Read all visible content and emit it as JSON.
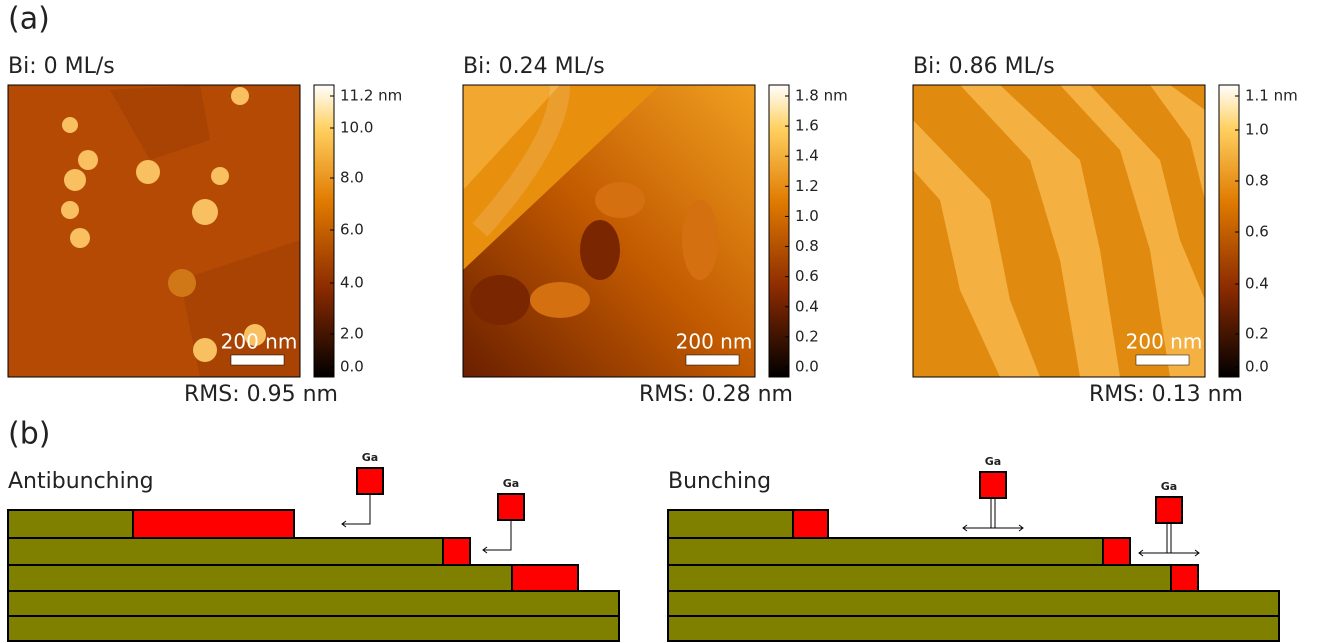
{
  "panel_a": {
    "label": "(a)",
    "images": [
      {
        "title": "Bi: 0 ML/s",
        "scale_bar": "200 nm",
        "rms": "RMS: 0.95 nm",
        "colorbar_ticks": [
          "11.2 nm",
          "10.0",
          "8.0",
          "6.0",
          "4.0",
          "2.0",
          "0.0"
        ]
      },
      {
        "title": "Bi: 0.24 ML/s",
        "scale_bar": "200 nm",
        "rms": "RMS: 0.28 nm",
        "colorbar_ticks": [
          "1.8 nm",
          "1.6",
          "1.4",
          "1.2",
          "1.0",
          "0.8",
          "0.6",
          "0.4",
          "0.2",
          "0.0"
        ]
      },
      {
        "title": "Bi: 0.86 ML/s",
        "scale_bar": "200 nm",
        "rms": "RMS: 0.13 nm",
        "colorbar_ticks": [
          "1.1 nm",
          "1.0",
          "0.8",
          "0.6",
          "0.4",
          "0.2",
          "0.0"
        ]
      }
    ]
  },
  "panel_b": {
    "label": "(b)",
    "diagrams": [
      {
        "title": "Antibunching",
        "adatom_labels": [
          "Ga",
          "Ga"
        ]
      },
      {
        "title": "Bunching",
        "adatom_labels": [
          "Ga",
          "Ga"
        ]
      }
    ]
  }
}
